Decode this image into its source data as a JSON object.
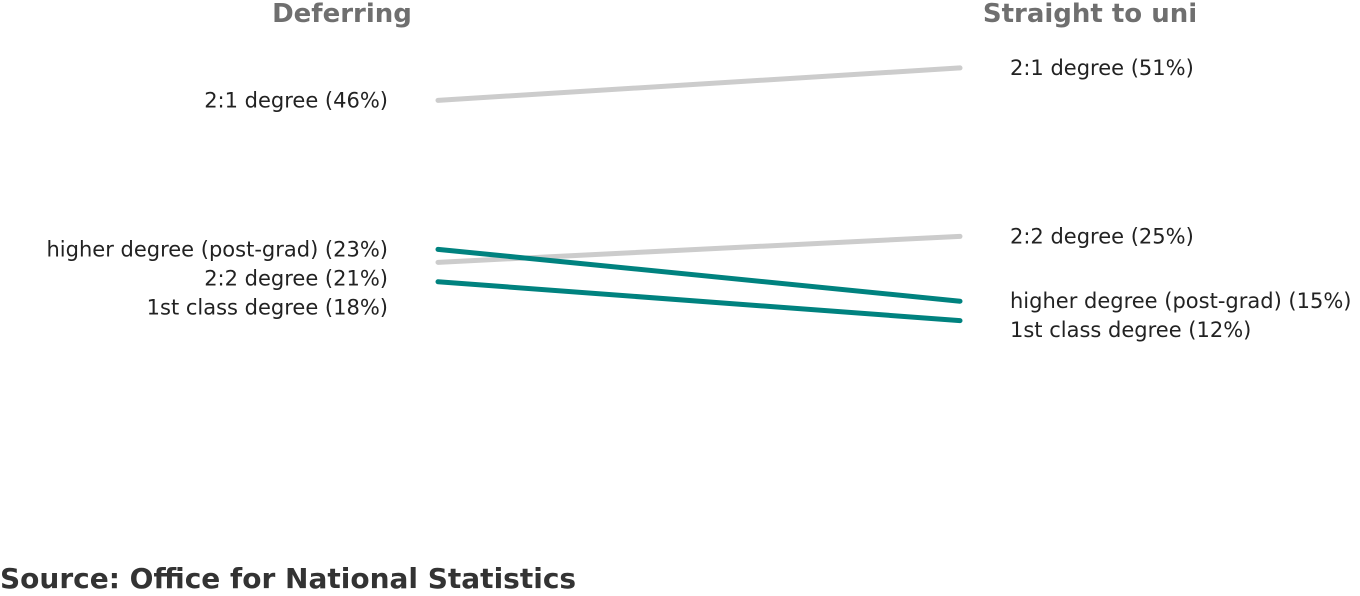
{
  "colors": {
    "increase": "#cccccc",
    "decrease": "#00827f",
    "header": "#6f6f6f",
    "label": "#222222"
  },
  "chart_data": {
    "type": "slope",
    "columns": [
      "Deferring",
      "Straight to uni"
    ],
    "ylim": [
      0,
      60
    ],
    "series": [
      {
        "name": "2:1 degree",
        "values": [
          46,
          51
        ],
        "labels": [
          "2:1 degree (46%)",
          "2:1 degree (51%)"
        ],
        "color": "#cccccc"
      },
      {
        "name": "2:2 degree",
        "values": [
          21,
          25
        ],
        "labels": [
          "2:2 degree (21%)",
          "2:2 degree (25%)"
        ],
        "color": "#cccccc"
      },
      {
        "name": "higher degree (post-grad)",
        "values": [
          23,
          15
        ],
        "labels": [
          "higher degree (post-grad) (23%)",
          "higher degree (post-grad) (15%)"
        ],
        "color": "#00827f"
      },
      {
        "name": "1st class degree",
        "values": [
          18,
          12
        ],
        "labels": [
          "1st class degree (18%)",
          "1st class degree (12%)"
        ],
        "color": "#00827f"
      }
    ]
  },
  "source": "Source: Office for National Statistics"
}
